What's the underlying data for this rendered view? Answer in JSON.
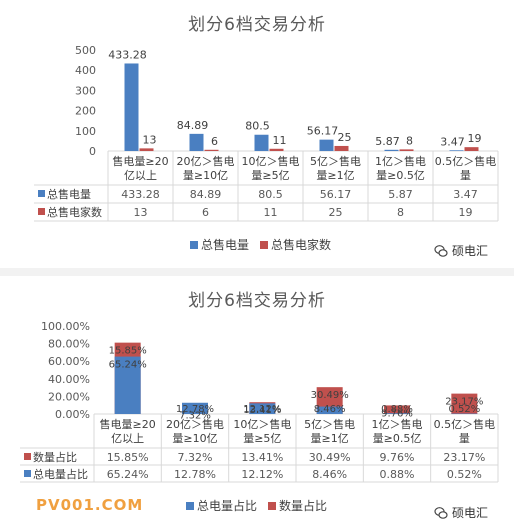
{
  "panels": [
    {
      "title": "划分6档交易分析",
      "categories": [
        "售电量≥20亿以上",
        "20亿＞售电量≥10亿",
        "10亿＞售电量≥5亿",
        "5亿＞售电量≥1亿",
        "1亿＞售电量≥0.5亿",
        "0.5亿＞售电量"
      ],
      "category_lines": [
        [
          "售电量≥20",
          "亿以上"
        ],
        [
          "20亿＞售电",
          "量≥10亿"
        ],
        [
          "10亿＞售电",
          "量≥5亿"
        ],
        [
          "5亿＞售电",
          "量≥1亿"
        ],
        [
          "1亿＞售电",
          "量≥0.5亿"
        ],
        [
          "0.5亿＞售电",
          "量"
        ]
      ],
      "y_ticks": [
        "500",
        "400",
        "300",
        "200",
        "100",
        "0"
      ],
      "series": [
        {
          "name": "总售电量",
          "color": "#4a7fc1",
          "values": [
            433.28,
            84.89,
            80.5,
            56.17,
            5.87,
            3.47
          ],
          "labels": [
            "433.28",
            "84.89",
            "80.5",
            "56.17",
            "5.87",
            "3.47"
          ]
        },
        {
          "name": "总售电家数",
          "color": "#c0504d",
          "values": [
            13,
            6,
            11,
            25,
            8,
            19
          ],
          "labels": [
            "13",
            "6",
            "11",
            "25",
            "8",
            "19"
          ]
        }
      ],
      "badge": "硕电汇"
    },
    {
      "title": "划分6档交易分析",
      "categories": [
        "售电量≥20亿以上",
        "20亿＞售电量≥10亿",
        "10亿＞售电量≥5亿",
        "5亿＞售电量≥1亿",
        "1亿＞售电量≥0.5亿",
        "0.5亿＞售电量"
      ],
      "category_lines": [
        [
          "售电量≥20",
          "亿以上"
        ],
        [
          "20亿＞售电",
          "量≥10亿"
        ],
        [
          "10亿＞售电",
          "量≥5亿"
        ],
        [
          "5亿＞售电",
          "量≥1亿"
        ],
        [
          "1亿＞售电",
          "量≥0.5亿"
        ],
        [
          "0.5亿＞售电",
          "量"
        ]
      ],
      "y_ticks": [
        "100.00%",
        "80.00%",
        "60.00%",
        "40.00%",
        "20.00%",
        "0.00%"
      ],
      "series": [
        {
          "name": "数量占比",
          "color": "#c0504d",
          "values": [
            15.85,
            7.32,
            13.41,
            30.49,
            9.76,
            23.17
          ],
          "labels": [
            "15.85%",
            "7.32%",
            "13.41%",
            "30.49%",
            "9.76%",
            "23.17%"
          ]
        },
        {
          "name": "总电量占比",
          "color": "#4a7fc1",
          "values": [
            65.24,
            12.78,
            12.12,
            8.46,
            0.88,
            0.52
          ],
          "labels": [
            "65.24%",
            "12.78%",
            "12.12%",
            "8.46%",
            "0.88%",
            "0.52%"
          ]
        }
      ],
      "legend": [
        "总电量占比",
        "数量占比"
      ],
      "badge": "硕电汇",
      "watermark": "PV001.COM"
    }
  ],
  "chart_data": [
    {
      "type": "bar",
      "title": "划分6档交易分析",
      "categories": [
        "售电量≥20亿以上",
        "20亿＞售电量≥10亿",
        "10亿＞售电量≥5亿",
        "5亿＞售电量≥1亿",
        "1亿＞售电量≥0.5亿",
        "0.5亿＞售电量"
      ],
      "series": [
        {
          "name": "总售电量",
          "values": [
            433.28,
            84.89,
            80.5,
            56.17,
            5.87,
            3.47
          ]
        },
        {
          "name": "总售电家数",
          "values": [
            13,
            6,
            11,
            25,
            8,
            19
          ]
        }
      ],
      "ylim": [
        0,
        500
      ],
      "legend": "bottom",
      "data_table": true
    },
    {
      "type": "bar",
      "title": "划分6档交易分析",
      "categories": [
        "售电量≥20亿以上",
        "20亿＞售电量≥10亿",
        "10亿＞售电量≥5亿",
        "5亿＞售电量≥1亿",
        "1亿＞售电量≥0.5亿",
        "0.5亿＞售电量"
      ],
      "series": [
        {
          "name": "数量占比",
          "values": [
            15.85,
            7.32,
            13.41,
            30.49,
            9.76,
            23.17
          ]
        },
        {
          "name": "总电量占比",
          "values": [
            65.24,
            12.78,
            12.12,
            8.46,
            0.88,
            0.52
          ]
        }
      ],
      "ylim": [
        0,
        100
      ],
      "overlapping": true,
      "legend": "bottom",
      "data_table": true
    }
  ]
}
